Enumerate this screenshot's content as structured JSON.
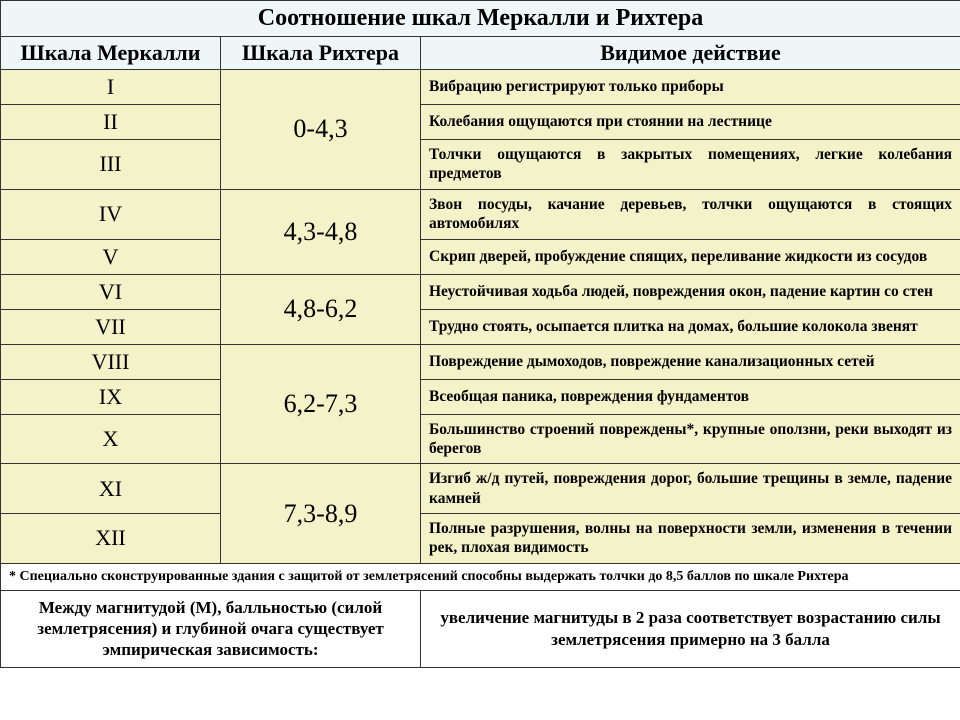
{
  "title": "Соотношение шкал Меркалли и Рихтера",
  "headers": {
    "mercalli": "Шкала Меркалли",
    "richter": "Шкала Рихтера",
    "action": "Видимое действие"
  },
  "groups": [
    {
      "richter": "0-4,3",
      "rows": [
        {
          "m": "I",
          "a": "Вибрацию регистрируют только приборы"
        },
        {
          "m": "II",
          "a": "Колебания ощущаются при стоянии на лестнице"
        },
        {
          "m": "III",
          "a": "Толчки ощущаются в закрытых помещениях, легкие колебания предметов"
        }
      ]
    },
    {
      "richter": "4,3-4,8",
      "rows": [
        {
          "m": "IV",
          "a": "Звон посуды, качание деревьев, толчки ощущаются в стоящих автомобилях"
        },
        {
          "m": "V",
          "a": "Скрип дверей, пробуждение спящих, переливание жидкости из сосудов"
        }
      ]
    },
    {
      "richter": "4,8-6,2",
      "rows": [
        {
          "m": "VI",
          "a": "Неустойчивая ходьба людей, повреждения окон, падение картин со стен"
        },
        {
          "m": "VII",
          "a": "Трудно стоять, осыпается плитка на домах, большие колокола звенят"
        }
      ]
    },
    {
      "richter": "6,2-7,3",
      "rows": [
        {
          "m": "VIII",
          "a": "Повреждение дымоходов, повреждение канализационных сетей"
        },
        {
          "m": "IX",
          "a": "Всеобщая паника, повреждения фундаментов"
        },
        {
          "m": "X",
          "a": "Большинство строений повреждены*, крупные оползни, реки выходят из берегов"
        }
      ]
    },
    {
      "richter": "7,3-8,9",
      "rows": [
        {
          "m": "XI",
          "a": "Изгиб ж/д путей, повреждения дорог, большие трещины в земле, падение камней"
        },
        {
          "m": "XII",
          "a": "Полные разрушения, волны на поверхности земли, изменения в течении рек, плохая видимость"
        }
      ]
    }
  ],
  "footnote": "* Специально сконструированные здания с защитой от землетрясений способны выдержать толчки до 8,5 баллов по шкале Рихтера",
  "bottom_left": "Между магнитудой (М), балльностью (силой землетрясения) и глубиной очага существует эмпирическая зависимость:",
  "bottom_right": "увеличение магнитуды в 2 раза соответствует возрастанию силы землетрясения примерно на 3 балла",
  "colors": {
    "header_bg": "#eef6f7",
    "cell_bg": "#f4f2c8",
    "border": "#333333"
  }
}
